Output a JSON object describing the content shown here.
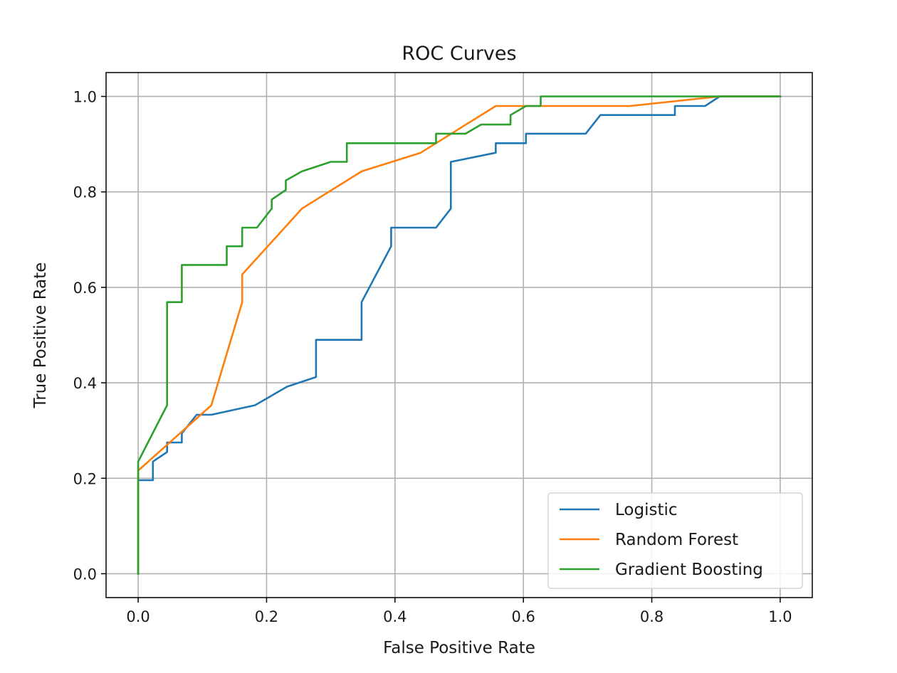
{
  "chart_data": {
    "type": "line",
    "title": "ROC Curves",
    "xlabel": "False Positive Rate",
    "ylabel": "True Positive Rate",
    "xlim": [
      -0.05,
      1.05
    ],
    "ylim": [
      -0.05,
      1.05
    ],
    "xticks": [
      0.0,
      0.2,
      0.4,
      0.6,
      0.8,
      1.0
    ],
    "yticks": [
      0.0,
      0.2,
      0.4,
      0.6,
      0.8,
      1.0
    ],
    "xtick_labels": [
      "0.0",
      "0.2",
      "0.4",
      "0.6",
      "0.8",
      "1.0"
    ],
    "ytick_labels": [
      "0.0",
      "0.2",
      "0.4",
      "0.6",
      "0.8",
      "1.0"
    ],
    "grid": true,
    "legend_position": "bottom-right",
    "series": [
      {
        "name": "Logistic",
        "color": "#1f77b4",
        "points": [
          [
            0.0,
            0.0
          ],
          [
            0.0,
            0.196
          ],
          [
            0.023,
            0.196
          ],
          [
            0.023,
            0.235
          ],
          [
            0.045,
            0.255
          ],
          [
            0.045,
            0.275
          ],
          [
            0.068,
            0.275
          ],
          [
            0.068,
            0.294
          ],
          [
            0.091,
            0.333
          ],
          [
            0.114,
            0.333
          ],
          [
            0.182,
            0.353
          ],
          [
            0.232,
            0.392
          ],
          [
            0.277,
            0.412
          ],
          [
            0.277,
            0.49
          ],
          [
            0.348,
            0.49
          ],
          [
            0.348,
            0.569
          ],
          [
            0.394,
            0.686
          ],
          [
            0.394,
            0.725
          ],
          [
            0.464,
            0.725
          ],
          [
            0.487,
            0.765
          ],
          [
            0.487,
            0.863
          ],
          [
            0.557,
            0.882
          ],
          [
            0.557,
            0.902
          ],
          [
            0.604,
            0.902
          ],
          [
            0.604,
            0.922
          ],
          [
            0.697,
            0.922
          ],
          [
            0.72,
            0.961
          ],
          [
            0.836,
            0.961
          ],
          [
            0.836,
            0.98
          ],
          [
            0.883,
            0.98
          ],
          [
            0.906,
            1.0
          ],
          [
            1.0,
            1.0
          ]
        ]
      },
      {
        "name": "Random Forest",
        "color": "#ff7f0e",
        "points": [
          [
            0.0,
            0.0
          ],
          [
            0.0,
            0.216
          ],
          [
            0.114,
            0.353
          ],
          [
            0.162,
            0.569
          ],
          [
            0.162,
            0.627
          ],
          [
            0.255,
            0.765
          ],
          [
            0.348,
            0.843
          ],
          [
            0.44,
            0.882
          ],
          [
            0.557,
            0.98
          ],
          [
            0.766,
            0.98
          ],
          [
            0.906,
            1.0
          ],
          [
            1.0,
            1.0
          ]
        ]
      },
      {
        "name": "Gradient Boosting",
        "color": "#2ca02c",
        "points": [
          [
            0.0,
            0.0
          ],
          [
            0.0,
            0.235
          ],
          [
            0.045,
            0.353
          ],
          [
            0.045,
            0.569
          ],
          [
            0.068,
            0.569
          ],
          [
            0.068,
            0.647
          ],
          [
            0.138,
            0.647
          ],
          [
            0.138,
            0.686
          ],
          [
            0.162,
            0.686
          ],
          [
            0.162,
            0.725
          ],
          [
            0.185,
            0.725
          ],
          [
            0.208,
            0.765
          ],
          [
            0.208,
            0.784
          ],
          [
            0.23,
            0.804
          ],
          [
            0.23,
            0.824
          ],
          [
            0.255,
            0.843
          ],
          [
            0.3,
            0.863
          ],
          [
            0.325,
            0.863
          ],
          [
            0.325,
            0.902
          ],
          [
            0.464,
            0.902
          ],
          [
            0.464,
            0.922
          ],
          [
            0.51,
            0.922
          ],
          [
            0.534,
            0.941
          ],
          [
            0.58,
            0.941
          ],
          [
            0.58,
            0.961
          ],
          [
            0.604,
            0.98
          ],
          [
            0.627,
            0.98
          ],
          [
            0.627,
            1.0
          ],
          [
            1.0,
            1.0
          ]
        ]
      }
    ]
  }
}
